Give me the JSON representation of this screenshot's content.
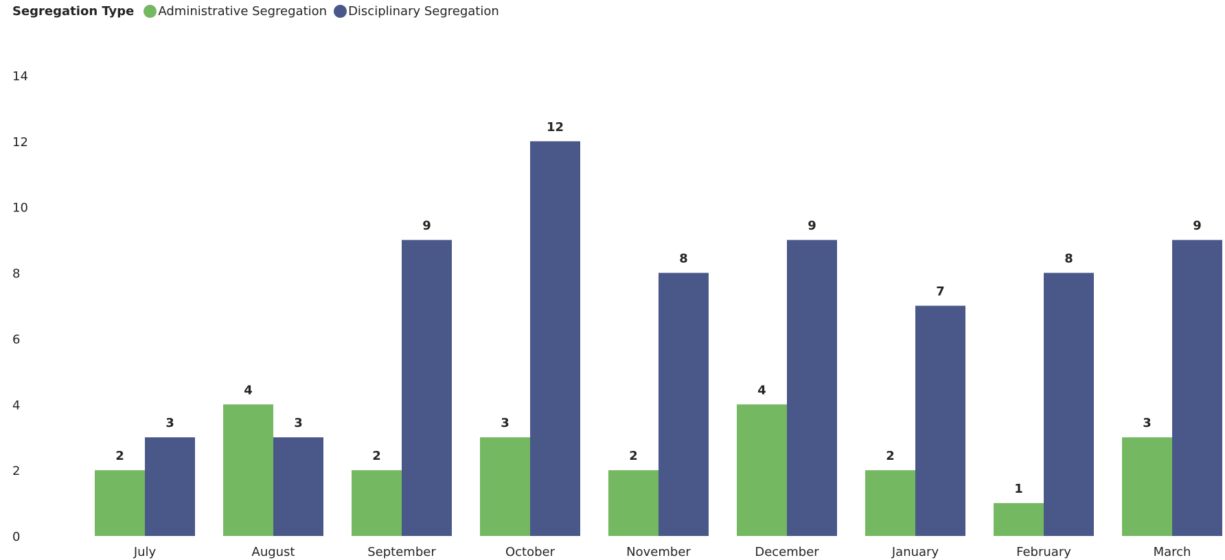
{
  "legend": {
    "title": "Segregation Type"
  },
  "chart_data": {
    "type": "bar",
    "categories": [
      "July",
      "August",
      "September",
      "October",
      "November",
      "December",
      "January",
      "February",
      "March"
    ],
    "series": [
      {
        "name": "Administrative Segregation",
        "color": "#74b862",
        "values": [
          2,
          4,
          2,
          3,
          2,
          4,
          2,
          1,
          3
        ]
      },
      {
        "name": "Disciplinary Segregation",
        "color": "#4a5889",
        "values": [
          3,
          3,
          9,
          12,
          8,
          9,
          7,
          8,
          9
        ]
      }
    ],
    "yticks": [
      0,
      2,
      4,
      6,
      8,
      10,
      12,
      14
    ],
    "ylim": [
      0,
      14
    ],
    "grid": false,
    "legend_position": "top-left",
    "data_labels": true
  }
}
